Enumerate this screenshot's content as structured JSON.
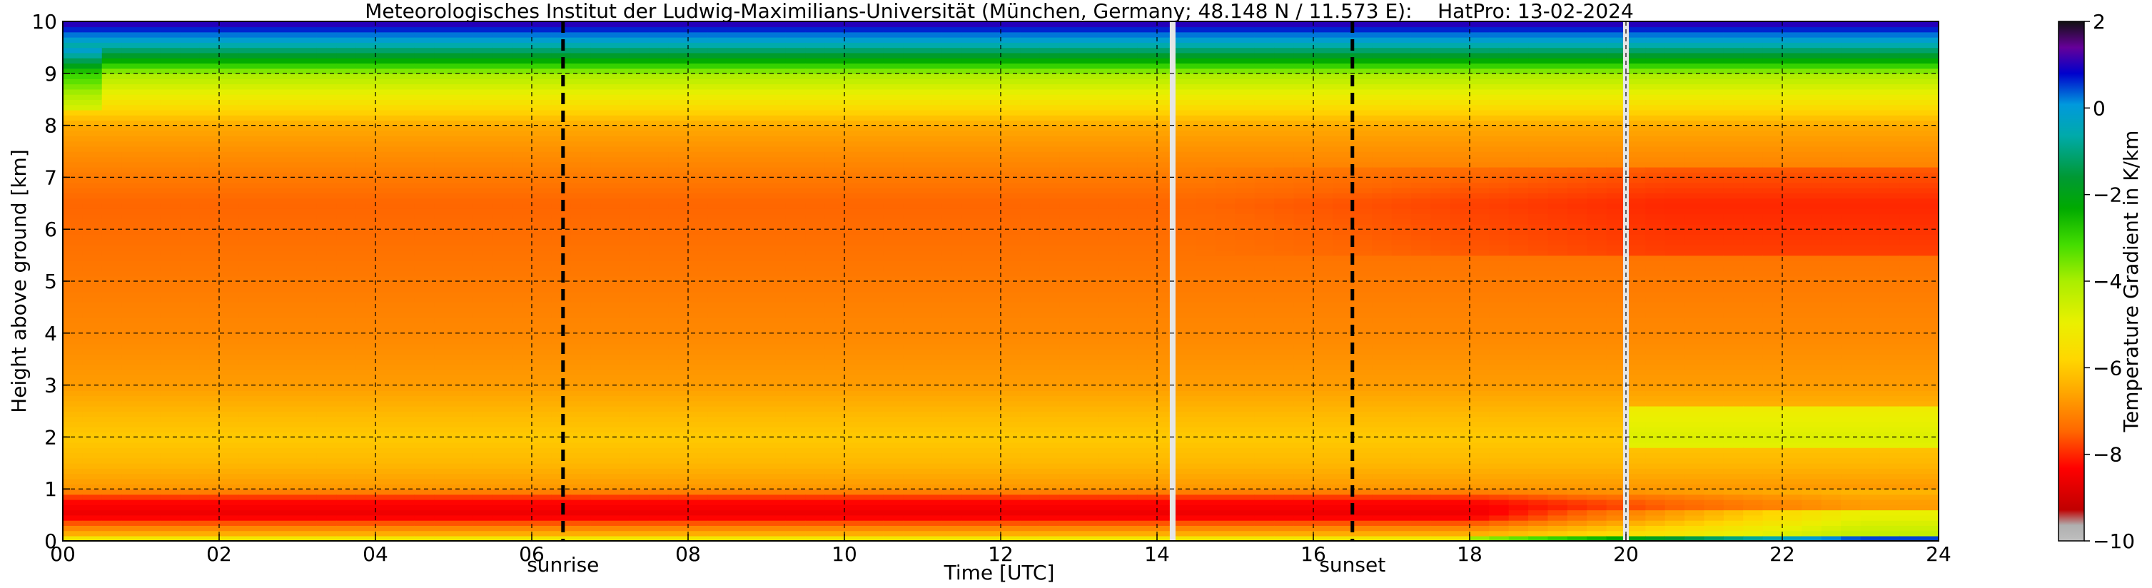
{
  "chart_data": {
    "type": "heatmap",
    "title": "Meteorologisches Institut der Ludwig-Maximilians-Universität (München, Germany; 48.148 N / 11.573 E):    HatPro: 13-02-2024",
    "xlabel": "Time [UTC]",
    "ylabel": "Height above ground [km]",
    "colorbar_label": "Temperature Gradient in K/km",
    "xlim": [
      0,
      24
    ],
    "ylim": [
      0,
      10
    ],
    "clim": [
      -10,
      2
    ],
    "x_ticks": [
      0,
      2,
      4,
      6,
      8,
      10,
      12,
      14,
      16,
      18,
      20,
      22,
      24
    ],
    "x_tick_labels": [
      "00",
      "02",
      "04",
      "06",
      "08",
      "10",
      "12",
      "14",
      "16",
      "18",
      "20",
      "22",
      "24"
    ],
    "y_ticks": [
      0,
      1,
      2,
      3,
      4,
      5,
      6,
      7,
      8,
      9,
      10
    ],
    "y_tick_labels": [
      "0",
      "1",
      "2",
      "3",
      "4",
      "5",
      "6",
      "7",
      "8",
      "9",
      "10"
    ],
    "colorbar_ticks": [
      2,
      0,
      -2,
      -4,
      -6,
      -8,
      -10
    ],
    "colorbar_tick_labels": [
      "2",
      "0",
      "−2",
      "−4",
      "−6",
      "−8",
      "−10"
    ],
    "grid": true,
    "markers": [
      {
        "label": "sunrise",
        "x": 6.4
      },
      {
        "label": "sunset",
        "x": 16.5
      }
    ],
    "gaps": [
      14.2,
      20.0
    ],
    "gradient_profile": {
      "height_km": [
        0.0,
        0.1,
        0.25,
        0.5,
        0.8,
        1.0,
        1.5,
        2.0,
        2.5,
        3.0,
        4.0,
        5.0,
        6.0,
        6.5,
        7.0,
        7.5,
        8.0,
        8.5,
        9.0,
        9.3,
        9.6,
        10.0
      ],
      "gradient_K_per_km": [
        -4.5,
        -6.2,
        -7.0,
        -8.6,
        -8.2,
        -6.8,
        -6.3,
        -6.0,
        -6.3,
        -6.7,
        -7.0,
        -7.2,
        -7.4,
        -7.5,
        -7.2,
        -6.9,
        -6.5,
        -5.3,
        -4.0,
        -2.0,
        -0.3,
        1.2
      ]
    }
  }
}
